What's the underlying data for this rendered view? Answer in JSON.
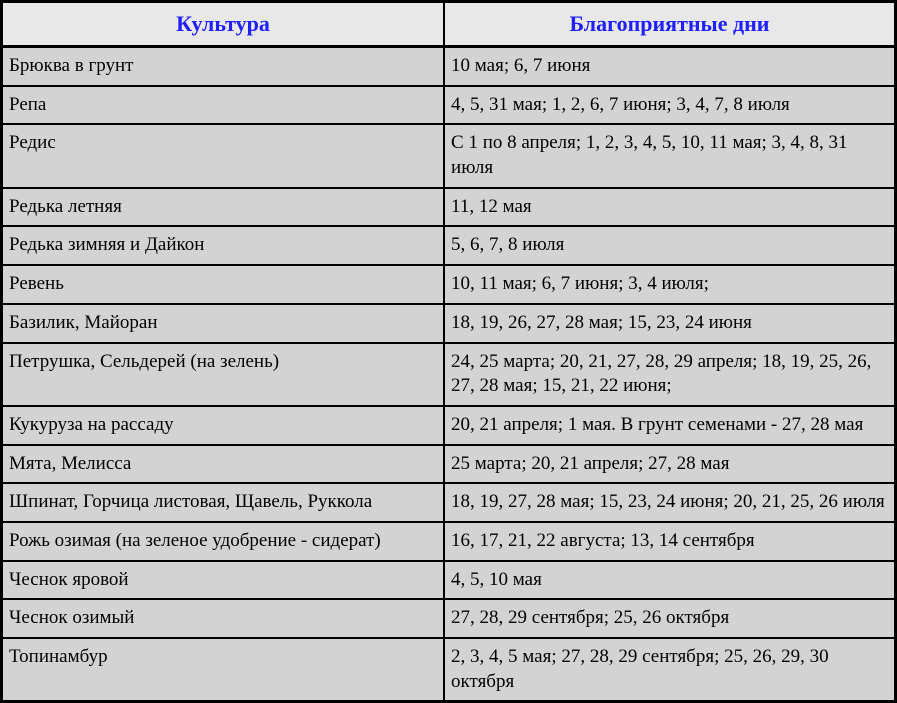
{
  "table": {
    "type": "table",
    "background_color": "#d3d3d3",
    "header_background": "#e8e8e8",
    "header_color": "#2020ff",
    "border_color": "#000000",
    "font_family": "Times New Roman",
    "header_fontsize": 22,
    "cell_fontsize": 19,
    "columns": [
      {
        "label": "Культура",
        "width_pct": 49.5
      },
      {
        "label": "Благоприятные дни",
        "width_pct": 50.5
      }
    ],
    "rows": [
      {
        "culture": "Брюква в грунт",
        "days": "10 мая; 6, 7 июня"
      },
      {
        "culture": "Репа",
        "days": "4, 5, 31 мая; 1, 2, 6, 7 июня; 3, 4, 7, 8 июля"
      },
      {
        "culture": "Редис",
        "days": "С 1 по 8 апреля; 1, 2, 3, 4, 5, 10, 11 мая; 3, 4, 8, 31 июля"
      },
      {
        "culture": "Редька летняя",
        "days": "11, 12 мая"
      },
      {
        "culture": "Редька зимняя и Дайкон",
        "days": "5, 6, 7, 8 июля"
      },
      {
        "culture": "Ревень",
        "days": "10, 11 мая; 6, 7 июня; 3, 4 июля;"
      },
      {
        "culture": "Базилик, Майоран",
        "days": "18, 19, 26, 27, 28 мая; 15, 23, 24 июня"
      },
      {
        "culture": "Петрушка, Сельдерей (на зелень)",
        "days": "24, 25 марта; 20, 21, 27, 28, 29 апреля; 18, 19, 25, 26, 27, 28 мая; 15, 21, 22 июня;"
      },
      {
        "culture": "Кукуруза на рассаду",
        "days": "20, 21 апреля; 1 мая. В грунт семенами - 27, 28 мая"
      },
      {
        "culture": "Мята, Мелисса",
        "days": "25 марта; 20, 21 апреля;  27, 28 мая"
      },
      {
        "culture": "Шпинат, Горчица листовая, Щавель, Руккола",
        "days": "18, 19, 27, 28 мая; 15, 23, 24 июня; 20, 21, 25, 26 июля"
      },
      {
        "culture": "Рожь озимая (на зеленое удобрение - сидерат)",
        "days": "16, 17, 21, 22 августа; 13, 14 сентября"
      },
      {
        "culture": "Чеснок яровой",
        "days": "4, 5, 10 мая"
      },
      {
        "culture": "Чеснок озимый",
        "days": "27, 28, 29 сентября; 25, 26 октября"
      },
      {
        "culture": "Топинамбур",
        "days": "2, 3, 4, 5 мая; 27, 28, 29 сентября; 25, 26, 29, 30 октября"
      }
    ]
  }
}
